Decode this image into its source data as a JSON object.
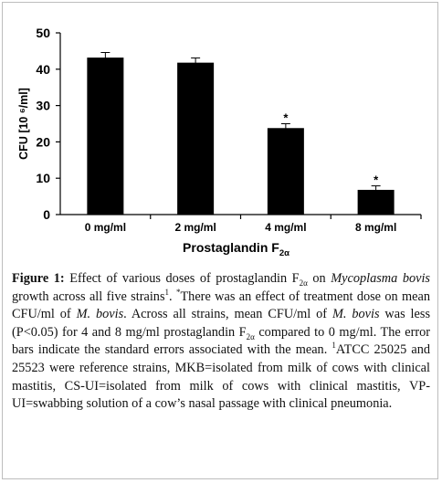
{
  "chart_data": {
    "type": "bar",
    "categories": [
      "0 mg/ml",
      "2 mg/ml",
      "4 mg/ml",
      "8 mg/ml"
    ],
    "values": [
      43.2,
      41.8,
      23.8,
      6.8
    ],
    "errors": [
      1.4,
      1.3,
      1.2,
      1.1
    ],
    "significance": [
      "",
      "",
      "*",
      "*"
    ],
    "ylabel": "CFU [10 ⁶/ml]",
    "xlabel": "Prostaglandin F",
    "xlabel_sub": "2α",
    "ylim": [
      0,
      50
    ],
    "yticks": [
      0,
      10,
      20,
      30,
      40,
      50
    ],
    "bar_color": "#000000",
    "grid": false,
    "legend": "none"
  },
  "caption": {
    "label": "Figure 1:",
    "s1": " Effect of various doses of prostaglandin F",
    "sub1": "2α",
    "s2": " on ",
    "species1": "Mycoplasma bovis",
    "s3": " growth across all five strains",
    "sup1": "1",
    "s4": ". ",
    "sup2": "*",
    "s5": "There was an effect of treatment dose on mean CFU/ml of ",
    "species2": "M. bovis",
    "s6": ". Across all strains, mean CFU/ml of ",
    "species3": "M. bovis",
    "s7": " was less (P<0.05) for 4 and 8 mg/ml prostaglandin F",
    "sub2": "2α",
    "s8": " compared to 0 mg/ml. The error bars indicate the standard errors associated with the mean. ",
    "sup3": "1",
    "s9": "ATCC 25025 and 25523 were reference strains, MKB=isolated from milk of cows with clinical mastitis, CS-UI=isolated from milk of cows with clinical mastitis, VP-UI=swabbing solution of a cow’s nasal passage with clinical pneumonia."
  }
}
